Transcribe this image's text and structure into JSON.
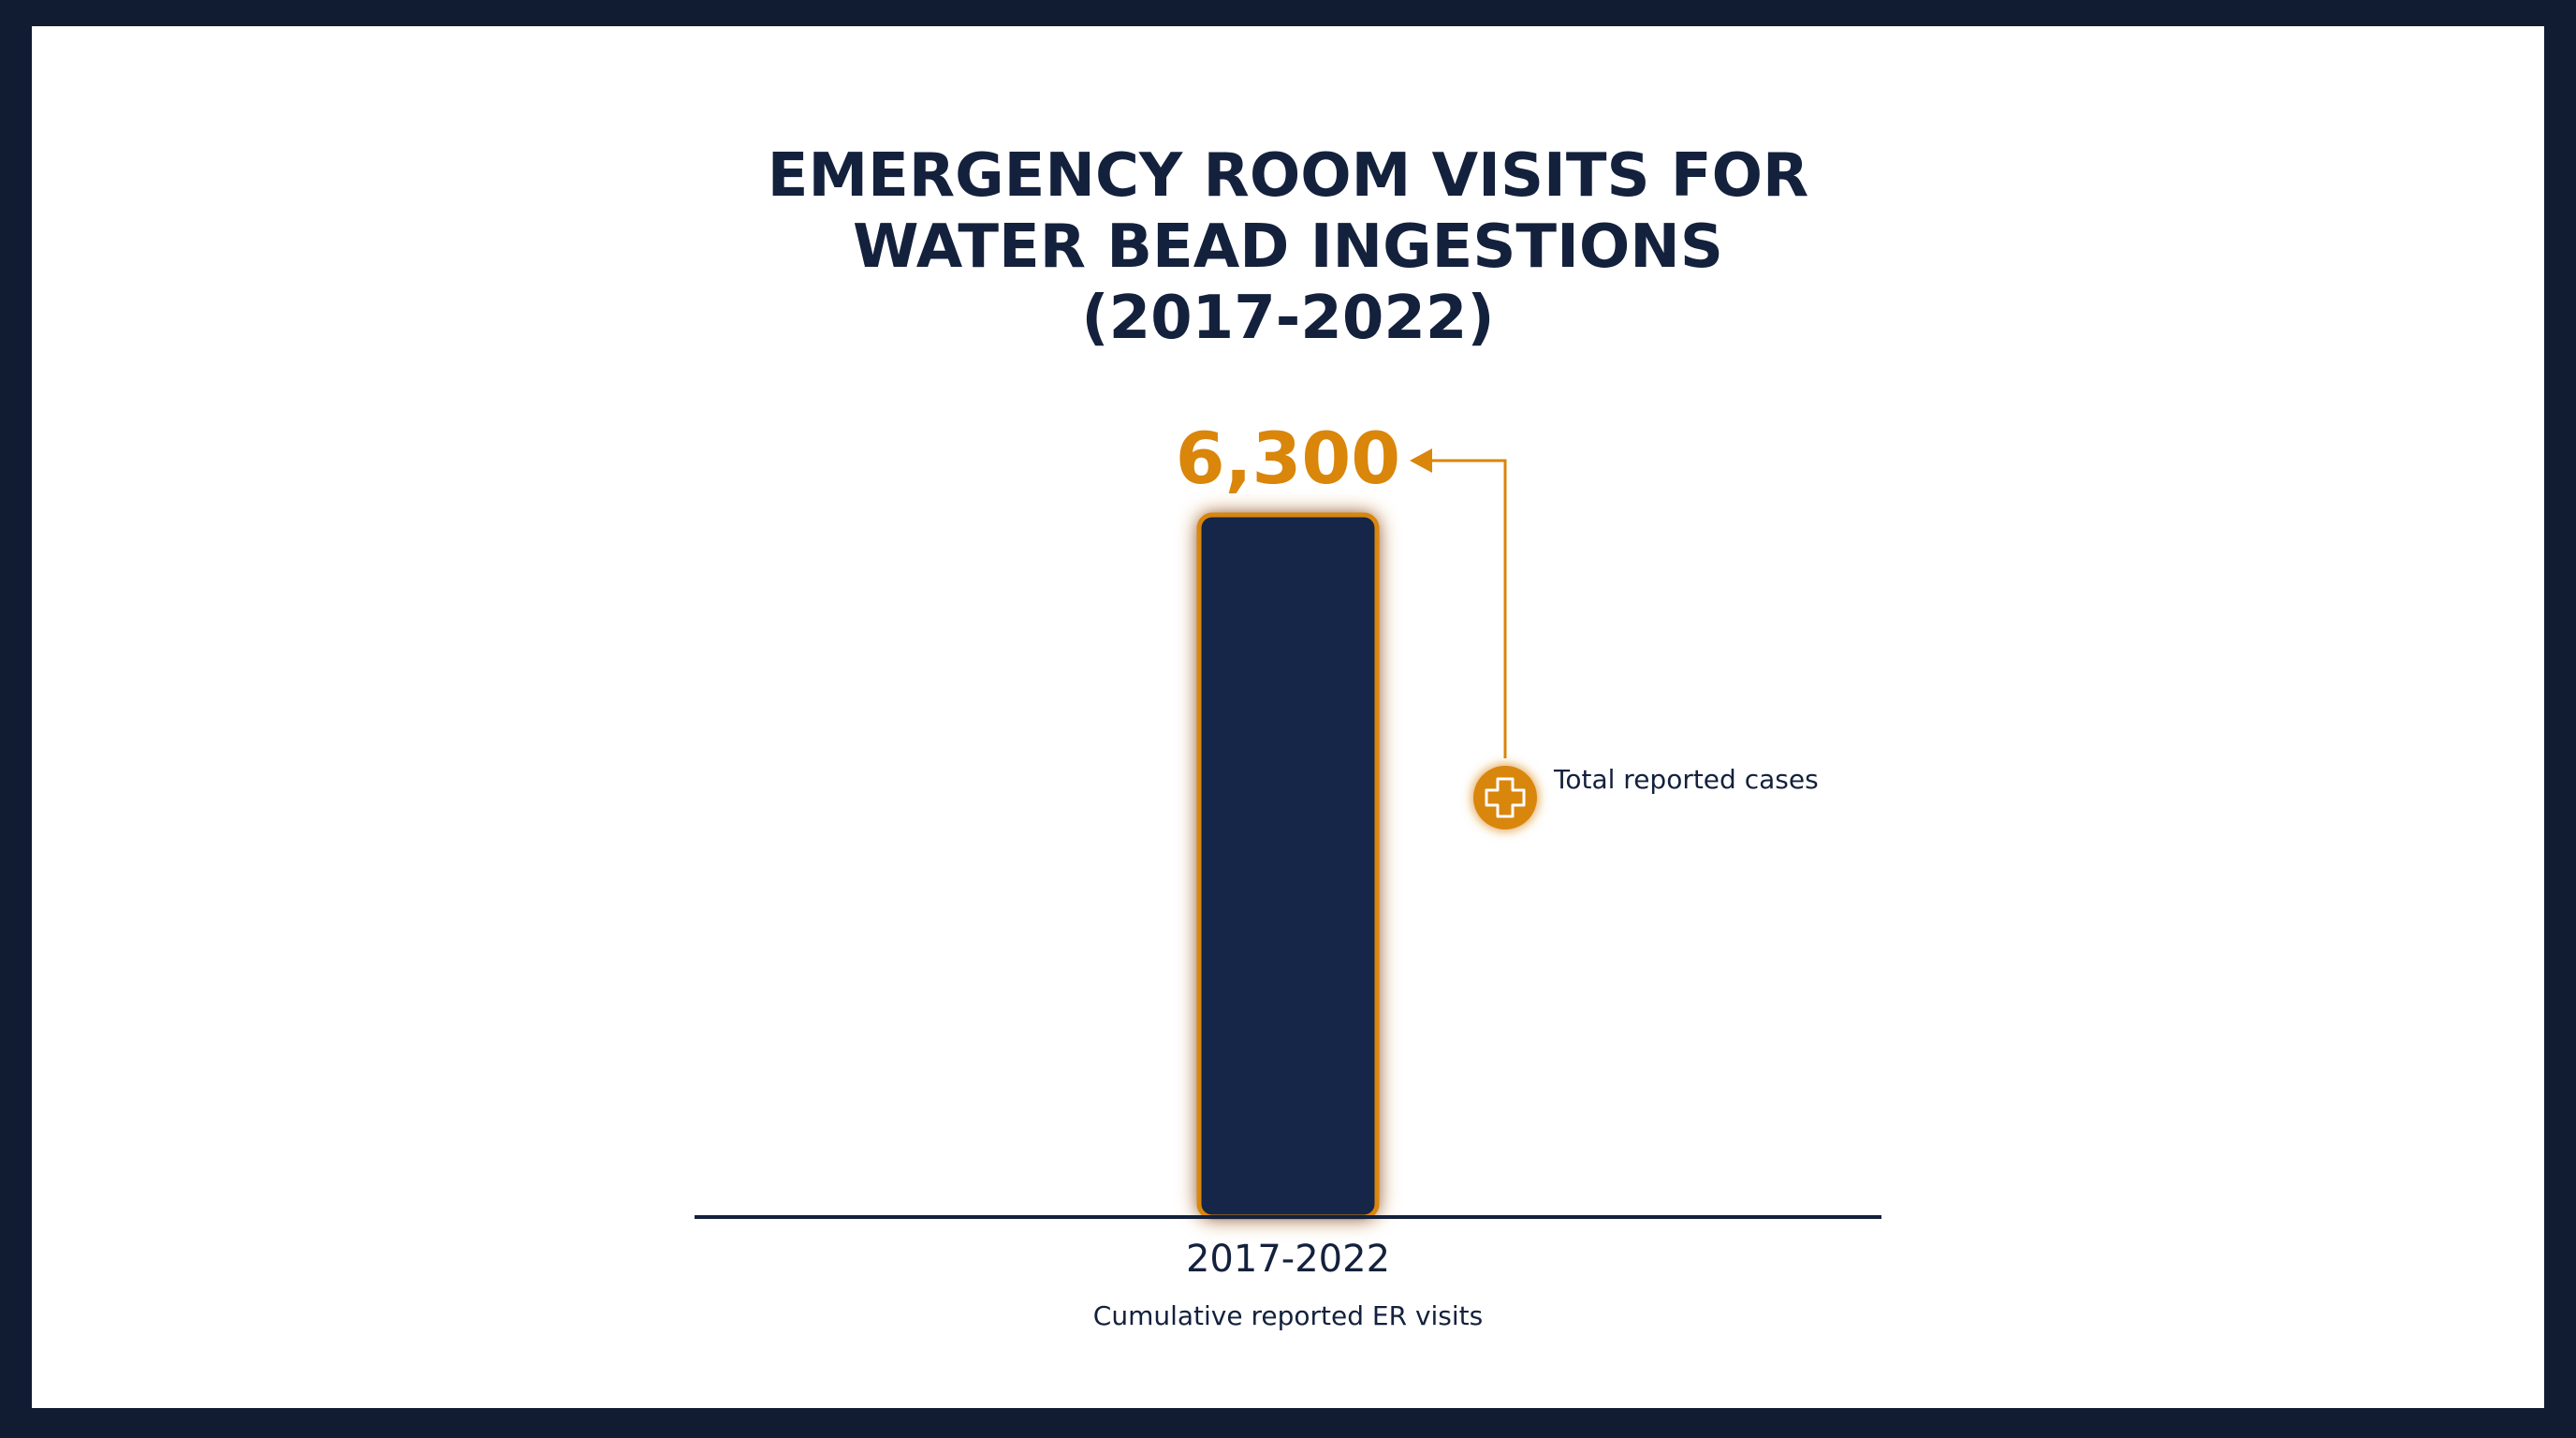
{
  "title_lines": [
    "EMERGENCY ROOM VISITS FOR",
    "WATER BEAD INGESTIONS",
    "(2017-2022)"
  ],
  "annotation": {
    "text": "Total reported cases",
    "icon": "medical-cross-icon"
  },
  "colors": {
    "frame": "#111c33",
    "bar": "#17264a",
    "accent": "#d9860b",
    "text": "#14213d"
  },
  "chart_data": {
    "type": "bar",
    "title": "EMERGENCY ROOM VISITS FOR WATER BEAD INGESTIONS (2017-2022)",
    "categories": [
      "2017-2022"
    ],
    "values": [
      6300
    ],
    "value_labels": [
      "6,300"
    ],
    "xlabel": "Cumulative reported ER visits",
    "ylabel": "",
    "ylim": [
      0,
      6300
    ],
    "grid": false,
    "legend": "none"
  }
}
